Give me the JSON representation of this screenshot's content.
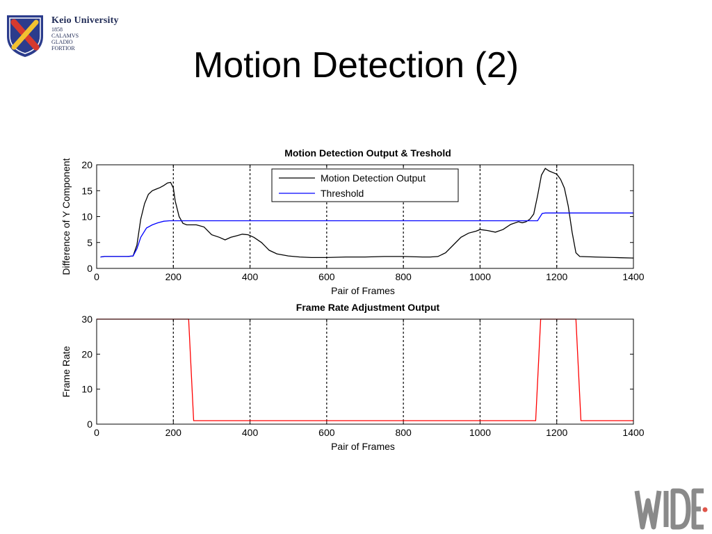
{
  "slide": {
    "title": "Motion Detection (2)",
    "university_logo": {
      "name": "Keio University",
      "lines": [
        "1858",
        "CALAMVS",
        "GLADIO",
        "FORTIOR"
      ],
      "shield_color": "#2b3c8c",
      "pen_color": "#d63a2f",
      "sword_color": "#f2c230"
    },
    "footer_logo": {
      "text": "WIDE",
      "color": "#8a8a8a",
      "dot_color": "#e0554a"
    }
  },
  "chart_data": [
    {
      "type": "line",
      "title": "Motion Detection Output & Treshold",
      "xlabel": "Pair of Frames",
      "ylabel": "Difference of Y Component",
      "xlim": [
        0,
        1400
      ],
      "ylim": [
        0,
        20
      ],
      "xticks": [
        0,
        200,
        400,
        600,
        800,
        1000,
        1200,
        1400
      ],
      "yticks": [
        0,
        5,
        10,
        15,
        20
      ],
      "vlines": [
        200,
        400,
        600,
        800,
        1000,
        1200
      ],
      "legend_position": "top-right",
      "series": [
        {
          "name": "Motion Detection Output",
          "color": "#000000",
          "x": [
            10,
            20,
            40,
            60,
            80,
            95,
            105,
            115,
            125,
            135,
            145,
            155,
            165,
            175,
            185,
            193,
            200,
            205,
            215,
            225,
            235,
            260,
            280,
            300,
            320,
            335,
            350,
            365,
            380,
            395,
            410,
            430,
            450,
            470,
            500,
            530,
            560,
            600,
            650,
            700,
            750,
            800,
            850,
            870,
            890,
            910,
            930,
            950,
            970,
            990,
            1000,
            1020,
            1040,
            1060,
            1080,
            1100,
            1110,
            1120,
            1130,
            1140,
            1150,
            1160,
            1170,
            1180,
            1190,
            1200,
            1210,
            1220,
            1230,
            1240,
            1250,
            1260,
            1300,
            1350,
            1400
          ],
          "y": [
            2.2,
            2.3,
            2.3,
            2.3,
            2.3,
            2.4,
            4.5,
            9.5,
            12.5,
            14.3,
            15,
            15.3,
            15.6,
            16,
            16.5,
            16.6,
            15.5,
            13,
            10,
            8.7,
            8.4,
            8.4,
            8,
            6.5,
            6,
            5.5,
            6,
            6.3,
            6.6,
            6.5,
            6,
            5,
            3.5,
            2.8,
            2.4,
            2.2,
            2.1,
            2.1,
            2.2,
            2.2,
            2.3,
            2.3,
            2.2,
            2.2,
            2.3,
            3,
            4.5,
            6,
            6.8,
            7.2,
            7.5,
            7.3,
            7,
            7.5,
            8.5,
            9,
            8.8,
            9,
            9.5,
            10.5,
            14,
            18,
            19.3,
            18.8,
            18.5,
            18.2,
            17.2,
            15.5,
            12,
            7,
            3,
            2.3,
            2.2,
            2.1,
            2
          ]
        },
        {
          "name": "Threshold",
          "color": "#0000ff",
          "x": [
            10,
            20,
            40,
            60,
            80,
            95,
            105,
            115,
            130,
            145,
            160,
            175,
            190,
            200,
            1150,
            1162,
            1170,
            1200,
            1400
          ],
          "y": [
            2.2,
            2.3,
            2.3,
            2.3,
            2.3,
            2.4,
            3.8,
            6,
            7.8,
            8.4,
            8.8,
            9.1,
            9.2,
            9.2,
            9.2,
            10.6,
            10.7,
            10.7,
            10.7
          ]
        }
      ]
    },
    {
      "type": "line",
      "title": "Frame Rate Adjustment Output",
      "xlabel": "Pair of Frames",
      "ylabel": "Frame Rate",
      "xlim": [
        0,
        1400
      ],
      "ylim": [
        0,
        30
      ],
      "xticks": [
        0,
        200,
        400,
        600,
        800,
        1000,
        1200,
        1400
      ],
      "yticks": [
        0,
        10,
        20,
        30
      ],
      "vlines": [
        200,
        400,
        600,
        800,
        1000,
        1200
      ],
      "series": [
        {
          "color": "#ff0000",
          "x": [
            0,
            240,
            253,
            1145,
            1158,
            1250,
            1263,
            1400
          ],
          "y": [
            30,
            30,
            1,
            1,
            30,
            30,
            1,
            1
          ]
        }
      ]
    }
  ]
}
